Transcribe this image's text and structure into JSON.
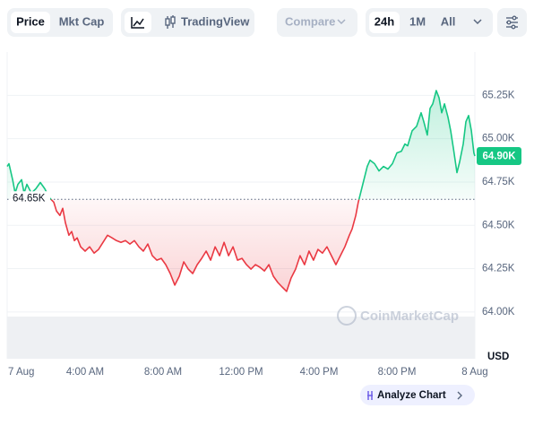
{
  "toolbar": {
    "price_tabs": [
      "Price",
      "Mkt Cap"
    ],
    "chart_view": "TradingView",
    "compare": "Compare",
    "ranges": [
      "24h",
      "1M",
      "All"
    ]
  },
  "footer": {
    "analyze": "Analyze Chart"
  },
  "chart_data": {
    "type": "line",
    "watermark": "CoinMarketCap",
    "y_label": "USD",
    "up_color": "#16c784",
    "down_color": "#ea3943",
    "grid": true,
    "baseline": {
      "value": 64650,
      "label": "64.65K"
    },
    "last_price": {
      "value": 64900,
      "label": "64.90K"
    },
    "xlim": [
      0,
      24
    ],
    "xticks": [
      {
        "value": 0,
        "label": "7 Aug"
      },
      {
        "value": 4,
        "label": "4:00 AM"
      },
      {
        "value": 8,
        "label": "8:00 AM"
      },
      {
        "value": 12,
        "label": "12:00 PM"
      },
      {
        "value": 16,
        "label": "4:00 PM"
      },
      {
        "value": 20,
        "label": "8:00 PM"
      },
      {
        "value": 24,
        "label": "8 Aug"
      }
    ],
    "ylim": [
      63730,
      65490
    ],
    "yticks": [
      {
        "value": 64000,
        "label": "64.00K"
      },
      {
        "value": 64250,
        "label": "64.25K"
      },
      {
        "value": 64500,
        "label": "64.50K"
      },
      {
        "value": 64750,
        "label": "64.75K"
      },
      {
        "value": 65000,
        "label": "65.00K"
      },
      {
        "value": 65250,
        "label": "65.25K"
      }
    ],
    "x": [
      0,
      0.09,
      0.28,
      0.41,
      0.55,
      0.74,
      0.87,
      1.01,
      1.24,
      1.47,
      1.7,
      1.93,
      2.16,
      2.39,
      2.53,
      2.71,
      2.85,
      2.99,
      3.17,
      3.31,
      3.45,
      3.59,
      3.77,
      4.0,
      4.23,
      4.46,
      4.69,
      4.92,
      5.15,
      5.38,
      5.61,
      5.84,
      6.07,
      6.3,
      6.53,
      6.76,
      6.99,
      7.22,
      7.45,
      7.68,
      7.91,
      8.14,
      8.37,
      8.6,
      8.83,
      9.06,
      9.29,
      9.52,
      9.75,
      9.98,
      10.21,
      10.44,
      10.67,
      10.9,
      11.13,
      11.36,
      11.59,
      11.82,
      12.05,
      12.28,
      12.51,
      12.74,
      12.97,
      13.2,
      13.43,
      13.66,
      13.89,
      14.11,
      14.34,
      14.57,
      14.8,
      15.03,
      15.26,
      15.49,
      15.72,
      15.95,
      16.18,
      16.41,
      16.64,
      16.87,
      17.1,
      17.33,
      17.56,
      17.7,
      17.89,
      18.02,
      18.25,
      18.48,
      18.62,
      18.85,
      19.08,
      19.31,
      19.54,
      19.77,
      20.0,
      20.23,
      20.41,
      20.55,
      20.78,
      21.01,
      21.24,
      21.38,
      21.56,
      21.7,
      21.84,
      22.02,
      22.16,
      22.3,
      22.44,
      22.62,
      22.76,
      22.9,
      23.08,
      23.22,
      23.4,
      23.54,
      23.68,
      23.82,
      23.95,
      24.0
    ],
    "values": [
      64840,
      64856,
      64763,
      64686,
      64737,
      64763,
      64686,
      64737,
      64686,
      64711,
      64747,
      64711,
      64660,
      64634,
      64583,
      64557,
      64598,
      64515,
      64443,
      64464,
      64412,
      64428,
      64376,
      64351,
      64376,
      64340,
      64361,
      64402,
      64443,
      64428,
      64412,
      64402,
      64412,
      64392,
      64412,
      64376,
      64351,
      64392,
      64325,
      64299,
      64309,
      64273,
      64222,
      64155,
      64206,
      64289,
      64247,
      64222,
      64273,
      64309,
      64351,
      64299,
      64376,
      64325,
      64402,
      64325,
      64376,
      64299,
      64309,
      64273,
      64247,
      64273,
      64258,
      64237,
      64273,
      64206,
      64170,
      64144,
      64119,
      64196,
      64247,
      64325,
      64273,
      64351,
      64299,
      64361,
      64340,
      64376,
      64325,
      64273,
      64325,
      64376,
      64443,
      64479,
      64557,
      64634,
      64737,
      64840,
      64876,
      64856,
      64814,
      64840,
      64825,
      64856,
      64918,
      64928,
      64969,
      64959,
      65046,
      65072,
      65150,
      65098,
      65021,
      65175,
      65201,
      65278,
      65237,
      65150,
      65201,
      65124,
      65046,
      64943,
      64804,
      64866,
      64969,
      65098,
      65134,
      65046,
      64918,
      64900
    ]
  }
}
